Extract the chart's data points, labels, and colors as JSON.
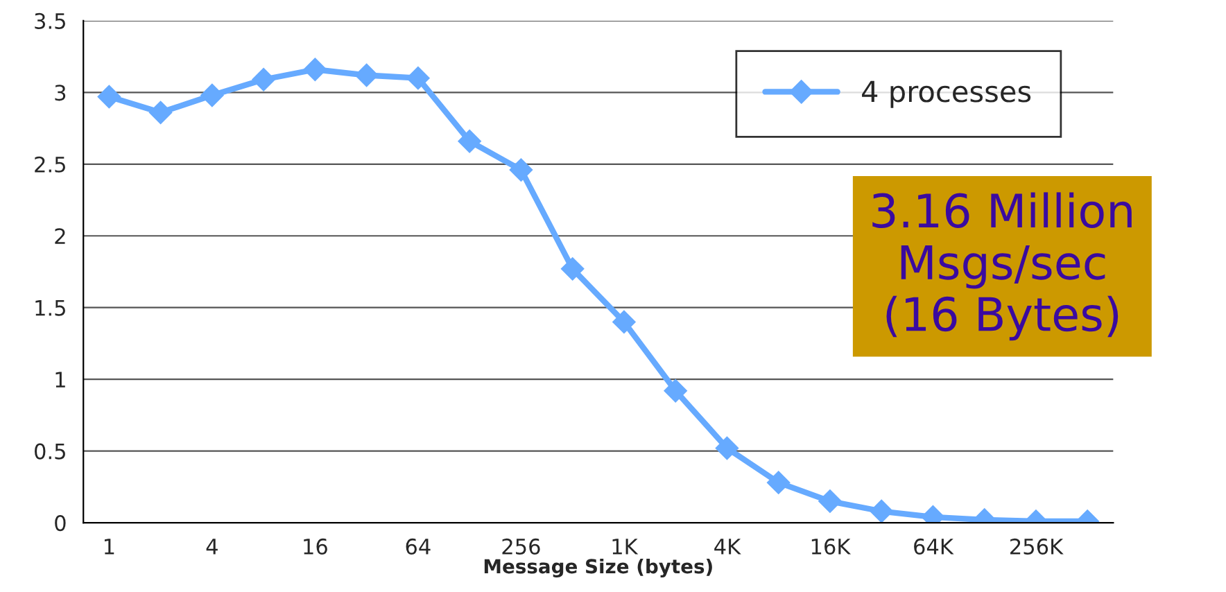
{
  "chart_data": {
    "type": "line",
    "xlabel": "Message Size (bytes)",
    "categories": [
      "1",
      null,
      "4",
      null,
      "16",
      null,
      "64",
      null,
      "256",
      null,
      "1K",
      null,
      "4K",
      null,
      "16K",
      null,
      "64K",
      null,
      "256K",
      null
    ],
    "series": [
      {
        "name": "4 processes",
        "color": "#66aaff",
        "values": [
          2.97,
          2.86,
          2.98,
          3.09,
          3.16,
          3.12,
          3.1,
          2.66,
          2.46,
          1.77,
          1.4,
          0.92,
          0.52,
          0.28,
          0.15,
          0.08,
          0.04,
          0.02,
          0.01,
          0.01
        ]
      }
    ],
    "ylim": [
      0,
      3.5
    ],
    "yticks": [
      0,
      0.5,
      1,
      1.5,
      2,
      2.5,
      3,
      3.5
    ],
    "grid": "y",
    "legend": "top right",
    "marker": "diamond",
    "line_style": "solid",
    "annotations": [
      "3.16 Million\nMsgs/sec\n(16 Bytes)"
    ]
  }
}
